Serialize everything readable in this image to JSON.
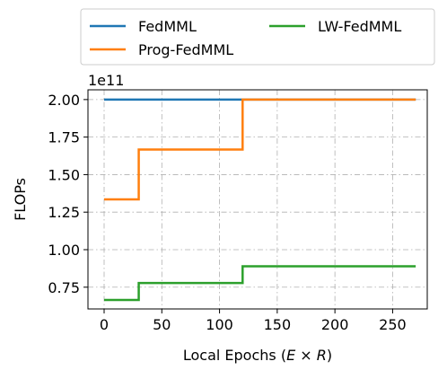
{
  "chart_data": {
    "type": "line",
    "ylabel": "FLOPs",
    "xlabel": {
      "main": "Local Epochs (",
      "E": "E",
      "times": " × ",
      "R": "R",
      "close": ")"
    },
    "y_offset_label": "1e11",
    "xlim": [
      -14,
      280
    ],
    "ylim": [
      0.605,
      2.065
    ],
    "x_ticks": [
      0,
      50,
      100,
      150,
      200,
      250
    ],
    "x_tick_labels": [
      "0",
      "50",
      "100",
      "150",
      "200",
      "250"
    ],
    "y_ticks": [
      0.75,
      1.0,
      1.25,
      1.5,
      1.75,
      2.0
    ],
    "y_tick_labels": [
      "0.75",
      "1.00",
      "1.25",
      "1.50",
      "1.75",
      "2.00"
    ],
    "grid": true,
    "grid_style": "dash-dot",
    "legend": {
      "placement": "top-outside",
      "columns": 2,
      "entries": [
        "FedMML",
        "Prog-FedMML",
        "LW-FedMML"
      ]
    },
    "series": [
      {
        "name": "FedMML",
        "color": "#1f77b4",
        "x": [
          0,
          270
        ],
        "y": [
          2.0,
          2.0
        ]
      },
      {
        "name": "Prog-FedMML",
        "color": "#ff7f0e",
        "x": [
          0,
          30,
          30,
          120,
          120,
          270
        ],
        "y": [
          1.335,
          1.335,
          1.667,
          1.667,
          2.0,
          2.0
        ]
      },
      {
        "name": "LW-FedMML",
        "color": "#2ca02c",
        "x": [
          0,
          30,
          30,
          120,
          120,
          270
        ],
        "y": [
          0.665,
          0.665,
          0.778,
          0.778,
          0.889,
          0.889
        ]
      }
    ]
  }
}
